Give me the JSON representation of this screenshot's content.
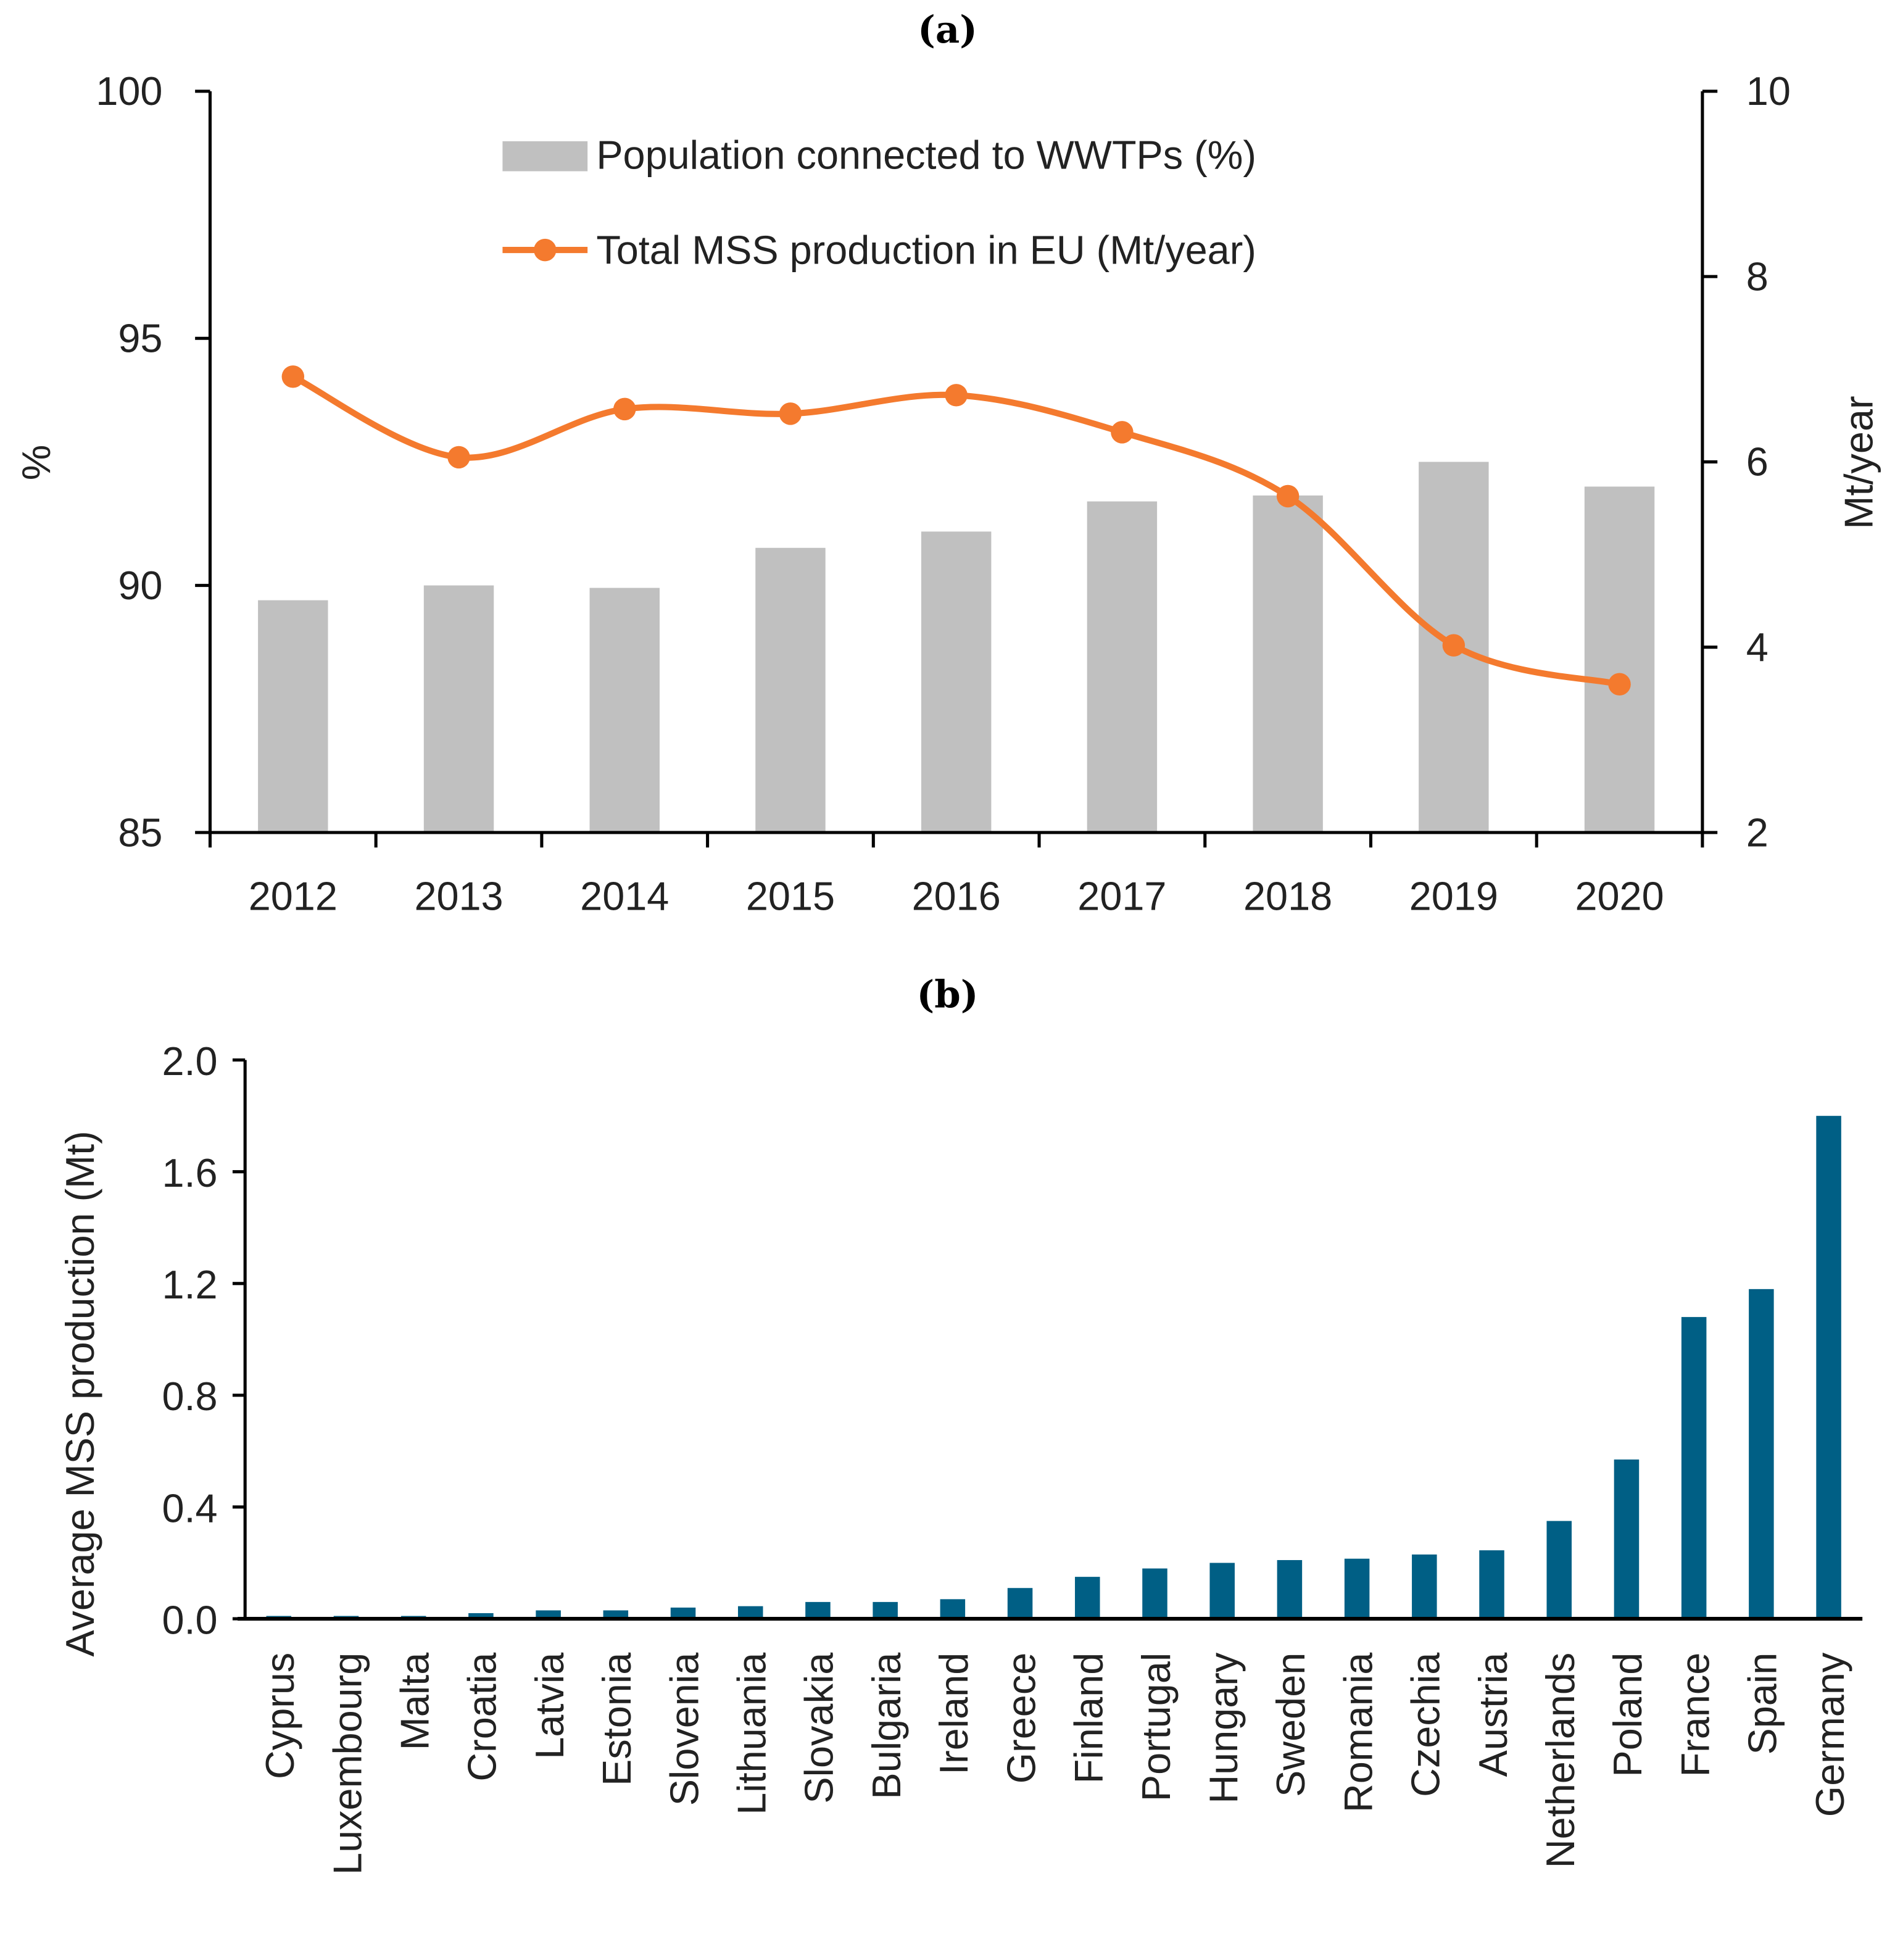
{
  "chart_data": [
    {
      "panel_label": "(a)",
      "type": "bar+line",
      "categories": [
        "2012",
        "2013",
        "2014",
        "2015",
        "2016",
        "2017",
        "2018",
        "2019",
        "2020"
      ],
      "series": [
        {
          "name": "Population connected to WWTPs (%)",
          "type": "bar",
          "axis": "left",
          "color": "#c0c0c0",
          "values": [
            89.7,
            90.0,
            89.95,
            90.76,
            91.09,
            91.7,
            91.82,
            92.5,
            92.0
          ]
        },
        {
          "name": "Total MSS production in EU  (Mt/year)",
          "type": "line",
          "axis": "right",
          "color": "#f47a2e",
          "values": [
            6.92,
            6.05,
            6.57,
            6.52,
            6.72,
            6.32,
            5.63,
            4.02,
            3.6
          ]
        }
      ],
      "ylabel": "%",
      "ylim": [
        85,
        100
      ],
      "yticks": [
        "85",
        "90",
        "95",
        "100"
      ],
      "y2label": "Mt/year",
      "y2lim": [
        2,
        10
      ],
      "y2ticks": [
        "2",
        "4",
        "6",
        "8",
        "10"
      ],
      "legend": "top-center"
    },
    {
      "panel_label": "(b)",
      "type": "bar",
      "categories": [
        "Cyprus",
        "Luxembourg",
        "Malta",
        "Croatia",
        "Latvia",
        "Estonia",
        "Slovenia",
        "Lithuania",
        "Slovakia",
        "Bulgaria",
        "Ireland",
        "Greece",
        "Finland",
        "Portugal",
        "Hungary",
        "Sweden",
        "Romania",
        "Czechia",
        "Austria",
        "Netherlands",
        "Poland",
        "France",
        "Spain",
        "Germany"
      ],
      "values": [
        0.01,
        0.01,
        0.01,
        0.02,
        0.03,
        0.03,
        0.04,
        0.045,
        0.06,
        0.06,
        0.07,
        0.11,
        0.15,
        0.18,
        0.2,
        0.21,
        0.215,
        0.23,
        0.245,
        0.35,
        0.57,
        1.08,
        1.18,
        1.8
      ],
      "color": "#005f85",
      "ylabel": "Average MSS production (Mt)",
      "ylim": [
        0,
        2.0
      ],
      "yticks": [
        "0.0",
        "0.4",
        "0.8",
        "1.2",
        "1.6",
        "2.0"
      ]
    }
  ]
}
